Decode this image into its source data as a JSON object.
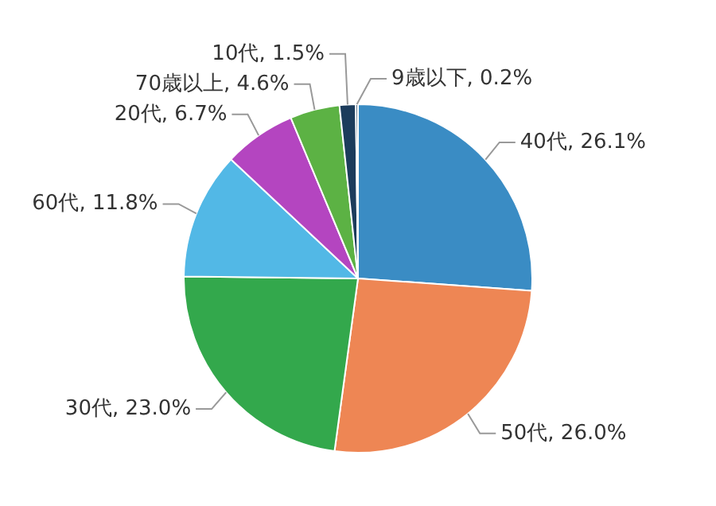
{
  "chart_data": {
    "type": "pie",
    "categories": [
      "40代",
      "50代",
      "30代",
      "60代",
      "20代",
      "70歳以上",
      "10代",
      "9歳以下"
    ],
    "values": [
      26.1,
      26.0,
      23.0,
      11.8,
      6.7,
      4.6,
      1.5,
      0.2
    ],
    "value_labels": [
      "26.1%",
      "26.0%",
      "23.0%",
      "11.8%",
      "6.7%",
      "4.6%",
      "1.5%",
      "0.2%"
    ],
    "colors": [
      "#3a8cc4",
      "#ee8654",
      "#33a84c",
      "#52b8e6",
      "#b445c0",
      "#5cb244",
      "#1c3c5c",
      "#1c3c5c"
    ],
    "legend": false
  }
}
